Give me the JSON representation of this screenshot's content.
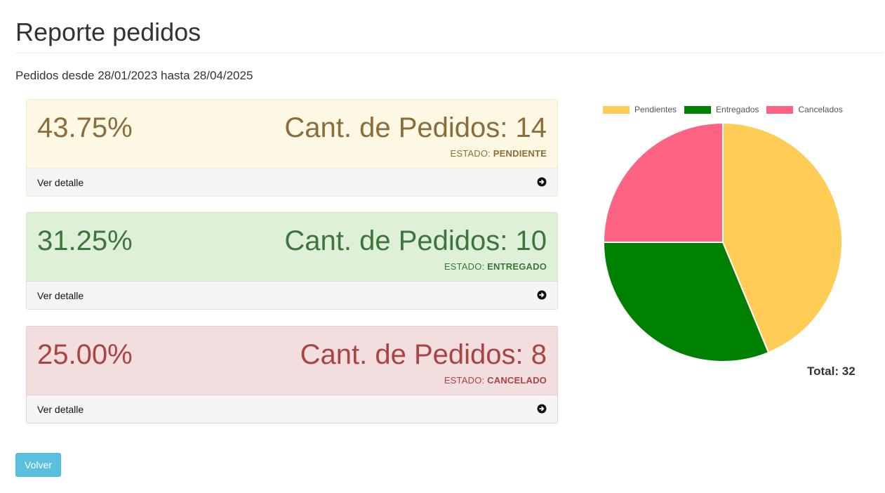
{
  "page": {
    "title": "Reporte pedidos",
    "range_text": "Pedidos desde 28/01/2023 hasta 28/04/2025"
  },
  "panels": [
    {
      "percent": "43.75%",
      "count_text": "Cant. de Pedidos: 14",
      "status_label": "ESTADO:",
      "status_value": "PENDIENTE",
      "detail_label": "Ver detalle",
      "icon": "arrow-circle-right-icon"
    },
    {
      "percent": "31.25%",
      "count_text": "Cant. de Pedidos: 10",
      "status_label": "ESTADO:",
      "status_value": "ENTREGADO",
      "detail_label": "Ver detalle",
      "icon": "arrow-circle-right-icon"
    },
    {
      "percent": "25.00%",
      "count_text": "Cant. de Pedidos: 8",
      "status_label": "ESTADO:",
      "status_value": "CANCELADO",
      "detail_label": "Ver detalle",
      "icon": "arrow-circle-right-icon"
    }
  ],
  "chart_data": {
    "type": "pie",
    "labels": [
      "Pendientes",
      "Entregados",
      "Cancelados"
    ],
    "values": [
      14,
      10,
      8
    ],
    "colors": [
      "#ffcd56",
      "#008000",
      "#ff6384"
    ],
    "legend": "top",
    "start_angle_deg": 0,
    "direction": "clockwise"
  },
  "total": {
    "label": "Total:",
    "value": "32"
  },
  "actions": {
    "back_label": "Volver"
  }
}
